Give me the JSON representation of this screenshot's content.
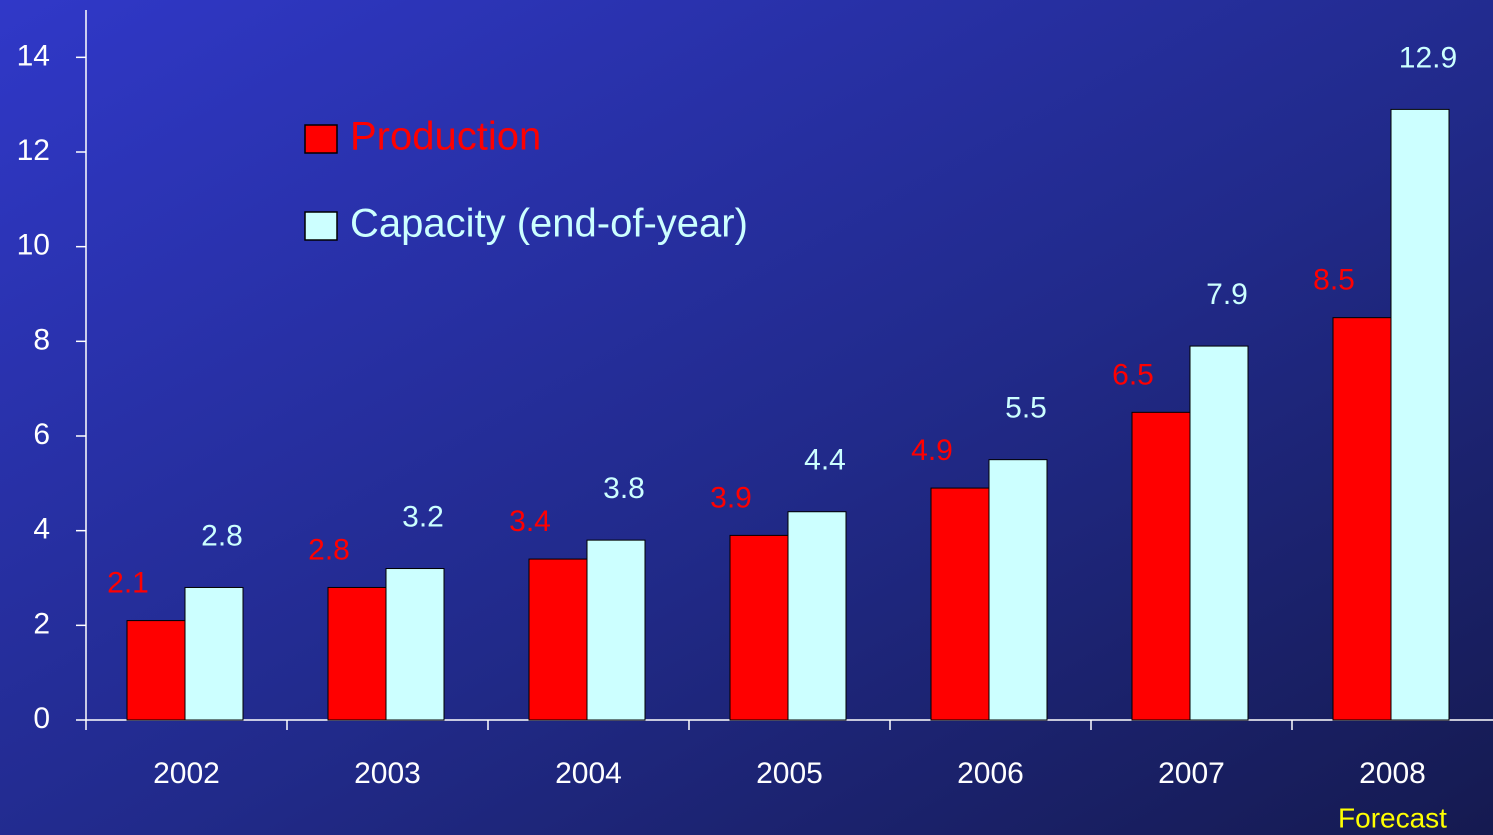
{
  "chart_data": {
    "type": "bar",
    "categories": [
      "2002",
      "2003",
      "2004",
      "2005",
      "2006",
      "2007",
      "2008"
    ],
    "series": [
      {
        "name": "Production",
        "color": "#ff0000",
        "values": [
          2.1,
          2.8,
          3.4,
          3.9,
          4.9,
          6.5,
          8.5
        ]
      },
      {
        "name": "Capacity (end-of-year)",
        "color": "#ccffff",
        "values": [
          2.8,
          3.2,
          3.8,
          4.4,
          5.5,
          7.9,
          12.9
        ]
      }
    ],
    "ylim": [
      0,
      15
    ],
    "yticks": [
      0,
      2,
      4,
      6,
      8,
      10,
      12,
      14
    ],
    "annotations": [
      "Forecast"
    ],
    "legend": "upper-left",
    "grid": false
  }
}
